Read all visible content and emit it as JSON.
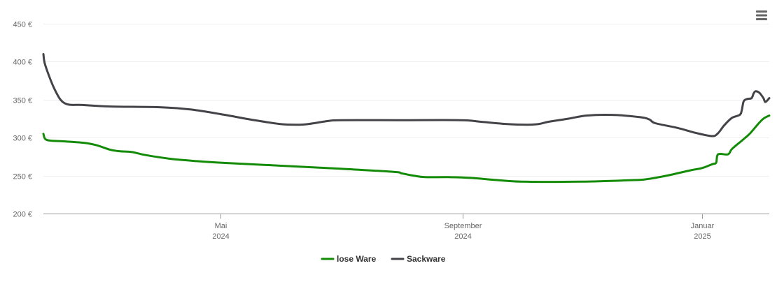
{
  "chart_data": {
    "type": "line",
    "ylim": [
      200,
      450
    ],
    "y_ticks": [
      {
        "value": 200,
        "label": "200 €"
      },
      {
        "value": 250,
        "label": "250 €"
      },
      {
        "value": 300,
        "label": "300 €"
      },
      {
        "value": 350,
        "label": "350 €"
      },
      {
        "value": 400,
        "label": "400 €"
      },
      {
        "value": 450,
        "label": "450 €"
      }
    ],
    "x_range": [
      "2024-02-01",
      "2025-02-04"
    ],
    "x_ticks": [
      {
        "date": "2024-05-01",
        "line1": "Mai",
        "line2": "2024"
      },
      {
        "date": "2024-09-01",
        "line1": "September",
        "line2": "2024"
      },
      {
        "date": "2025-01-01",
        "line1": "Januar",
        "line2": "2025"
      }
    ],
    "grid": true,
    "legend": "bottom-center",
    "series": [
      {
        "name": "lose Ware",
        "color": "#138b07",
        "points": [
          [
            "2024-02-01",
            305
          ],
          [
            "2024-02-02",
            298
          ],
          [
            "2024-02-05",
            296
          ],
          [
            "2024-02-12",
            295
          ],
          [
            "2024-02-22",
            293
          ],
          [
            "2024-02-28",
            290
          ],
          [
            "2024-03-06",
            284
          ],
          [
            "2024-03-11",
            282
          ],
          [
            "2024-03-17",
            281
          ],
          [
            "2024-03-24",
            277
          ],
          [
            "2024-04-06",
            272
          ],
          [
            "2024-04-19",
            269
          ],
          [
            "2024-05-01",
            267
          ],
          [
            "2024-06-01",
            263
          ],
          [
            "2024-07-01",
            259
          ],
          [
            "2024-07-28",
            255
          ],
          [
            "2024-08-01",
            253
          ],
          [
            "2024-08-07",
            250
          ],
          [
            "2024-08-13",
            248
          ],
          [
            "2024-08-25",
            248
          ],
          [
            "2024-09-05",
            247
          ],
          [
            "2024-09-19",
            244
          ],
          [
            "2024-10-01",
            242
          ],
          [
            "2024-10-31",
            242
          ],
          [
            "2024-11-26",
            244
          ],
          [
            "2024-12-03",
            245
          ],
          [
            "2024-12-14",
            250
          ],
          [
            "2024-12-26",
            257
          ],
          [
            "2025-01-01",
            260
          ],
          [
            "2025-01-06",
            265
          ],
          [
            "2025-01-08",
            267
          ],
          [
            "2025-01-09",
            278
          ],
          [
            "2025-01-14",
            278
          ],
          [
            "2025-01-16",
            285
          ],
          [
            "2025-01-21",
            296
          ],
          [
            "2025-01-25",
            305
          ],
          [
            "2025-01-29",
            317
          ],
          [
            "2025-02-01",
            325
          ],
          [
            "2025-02-04",
            329
          ]
        ]
      },
      {
        "name": "Sackware",
        "color": "#434348",
        "points": [
          [
            "2024-02-01",
            410
          ],
          [
            "2024-02-02",
            395
          ],
          [
            "2024-02-07",
            362
          ],
          [
            "2024-02-12",
            345
          ],
          [
            "2024-02-21",
            343
          ],
          [
            "2024-03-06",
            341
          ],
          [
            "2024-04-01",
            340
          ],
          [
            "2024-04-16",
            337
          ],
          [
            "2024-05-01",
            331
          ],
          [
            "2024-05-16",
            324
          ],
          [
            "2024-05-31",
            318
          ],
          [
            "2024-06-10",
            317
          ],
          [
            "2024-06-15",
            318
          ],
          [
            "2024-06-25",
            322
          ],
          [
            "2024-07-01",
            323
          ],
          [
            "2024-07-31",
            323
          ],
          [
            "2024-08-31",
            323
          ],
          [
            "2024-09-10",
            321
          ],
          [
            "2024-09-23",
            318
          ],
          [
            "2024-10-04",
            317
          ],
          [
            "2024-10-10",
            318
          ],
          [
            "2024-10-15",
            321
          ],
          [
            "2024-10-25",
            325
          ],
          [
            "2024-11-03",
            329
          ],
          [
            "2024-11-16",
            330
          ],
          [
            "2024-11-30",
            327
          ],
          [
            "2024-12-05",
            324
          ],
          [
            "2024-12-08",
            319
          ],
          [
            "2024-12-19",
            313
          ],
          [
            "2024-12-29",
            306
          ],
          [
            "2025-01-06",
            302
          ],
          [
            "2025-01-09",
            306
          ],
          [
            "2025-01-12",
            316
          ],
          [
            "2025-01-16",
            326
          ],
          [
            "2025-01-20",
            330
          ],
          [
            "2025-01-21",
            336
          ],
          [
            "2025-01-22",
            348
          ],
          [
            "2025-01-24",
            351
          ],
          [
            "2025-01-26",
            352
          ],
          [
            "2025-01-27",
            358
          ],
          [
            "2025-01-28",
            361
          ],
          [
            "2025-01-30",
            359
          ],
          [
            "2025-02-01",
            352
          ],
          [
            "2025-02-02",
            347
          ],
          [
            "2025-02-04",
            352
          ]
        ]
      }
    ]
  },
  "toolbar": {
    "menu_icon": "hamburger-menu-icon"
  }
}
